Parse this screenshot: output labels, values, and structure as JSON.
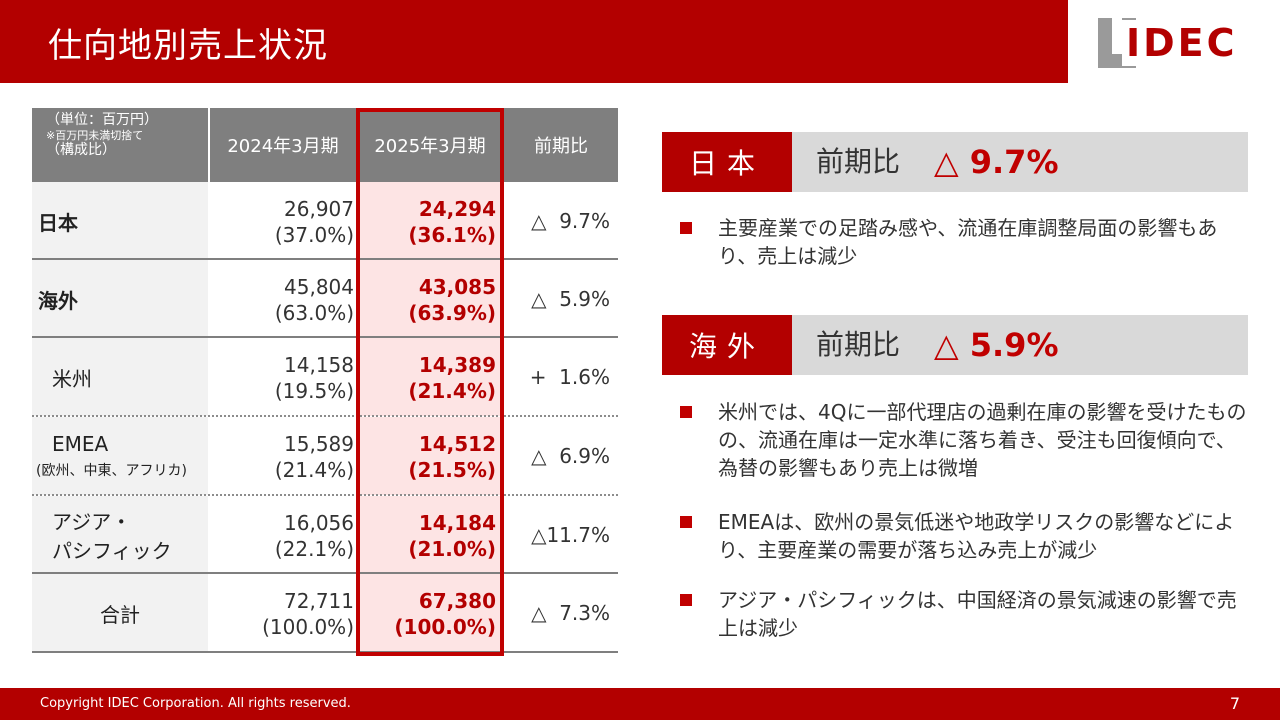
{
  "title": "仕向地別売上状況",
  "logo": {
    "text": "IDEC"
  },
  "table": {
    "unit_line1": "（単位：百万円）",
    "unit_line2": "※百万円未満切捨て",
    "unit_line3": "（構成比）",
    "col1": "2024年3月期",
    "col2": "2025年3月期",
    "col3": "前期比",
    "rows": [
      {
        "label": "日本",
        "note": "",
        "prev": "26,907",
        "prev_pct": "(37.0%)",
        "curr": "24,294",
        "curr_pct": "(36.1%)",
        "ratio": "△  9.7%"
      },
      {
        "label": "海外",
        "note": "",
        "prev": "45,804",
        "prev_pct": "(63.0%)",
        "curr": "43,085",
        "curr_pct": "(63.9%)",
        "ratio": "△  5.9%"
      },
      {
        "label": "米州",
        "note": "",
        "prev": "14,158",
        "prev_pct": "(19.5%)",
        "curr": "14,389",
        "curr_pct": "(21.4%)",
        "ratio": "+  1.6%"
      },
      {
        "label": "EMEA",
        "note": "(欧州、中東、アフリカ)",
        "prev": "15,589",
        "prev_pct": "(21.4%)",
        "curr": "14,512",
        "curr_pct": "(21.5%)",
        "ratio": "△  6.9%"
      },
      {
        "label": "アジア・",
        "label2": "パシフィック",
        "note": "",
        "prev": "16,056",
        "prev_pct": "(22.1%)",
        "curr": "14,184",
        "curr_pct": "(21.0%)",
        "ratio": "△11.7%"
      },
      {
        "label": "合計",
        "note": "",
        "prev": "72,711",
        "prev_pct": "(100.0%)",
        "curr": "67,380",
        "curr_pct": "(100.0%)",
        "ratio": "△  7.3%"
      }
    ]
  },
  "japan": {
    "tag": "日本",
    "label": "前期比",
    "value": "△ 9.7%",
    "bullets": [
      "主要産業での足踏み感や、流通在庫調整局面の影響もあり、売上は減少"
    ]
  },
  "overseas": {
    "tag": "海外",
    "label": "前期比",
    "value": "△ 5.9%",
    "bullets": [
      "米州では、4Qに一部代理店の過剰在庫の影響を受けたものの、流通在庫は一定水準に落ち着き、受注も回復傾向で、為替の影響もあり売上は微増",
      "EMEAは、欧州の景気低迷や地政学リスクの影響などにより、主要産業の需要が落ち込み売上が減少",
      "アジア・パシフィックは、中国経済の景気減速の影響で売上は減少"
    ]
  },
  "footer": {
    "copyright": "Copyright IDEC Corporation. All rights reserved.",
    "page": "7"
  },
  "colors": {
    "brand_red": "#b30000",
    "highlight": "#c00000",
    "header_gray": "#7f7f7f"
  }
}
